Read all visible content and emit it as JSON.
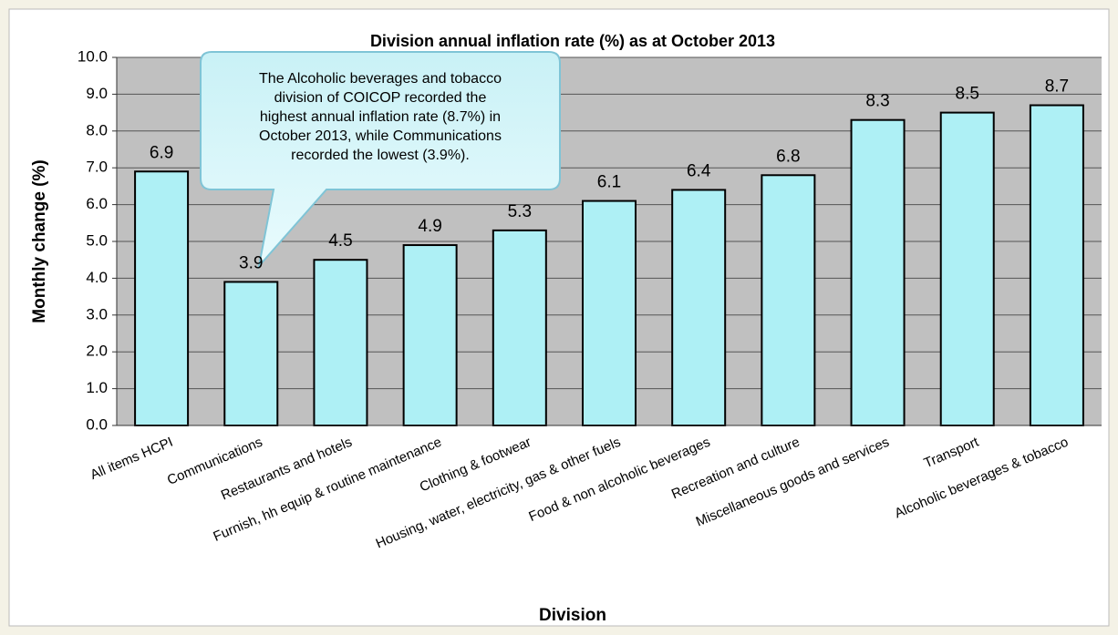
{
  "chart_data": {
    "type": "bar",
    "title": "Division annual inflation rate (%) as at October 2013",
    "x_label": "Division",
    "y_label": "Monthly change (%)",
    "categories": [
      "All items HCPI",
      "Communications",
      "Restaurants and hotels",
      "Furnish, hh equip & routine maintenance",
      "Clothing & footwear",
      "Housing, water, electricity, gas & other fuels",
      "Food & non alcoholic beverages",
      "Recreation and culture",
      "Miscellaneous goods and services",
      "Transport",
      "Alcoholic beverages & tobacco"
    ],
    "values": [
      6.9,
      3.9,
      4.5,
      4.9,
      5.3,
      6.1,
      6.4,
      6.8,
      8.3,
      8.5,
      8.7
    ],
    "color": "#aef0f5",
    "ylim": [
      0,
      10
    ],
    "yticks": [
      {
        "value": 0,
        "label": "0.0"
      },
      {
        "value": 1,
        "label": "1.0"
      },
      {
        "value": 2,
        "label": "2.0"
      },
      {
        "value": 3,
        "label": "3.0"
      },
      {
        "value": 4,
        "label": "4.0"
      },
      {
        "value": 5,
        "label": "5.0"
      },
      {
        "value": 6,
        "label": "6.0"
      },
      {
        "value": 7,
        "label": "7.0"
      },
      {
        "value": 8,
        "label": "8.0"
      },
      {
        "value": 9,
        "label": "9.0"
      },
      {
        "value": 10,
        "label": "10.0"
      }
    ],
    "grid": true,
    "annotation_lines": [
      "The Alcoholic beverages and tobacco",
      "division of COICOP recorded the",
      "highest annual inflation rate (8.7%) in",
      "October 2013, while Communications",
      "recorded the lowest (3.9%)."
    ]
  }
}
